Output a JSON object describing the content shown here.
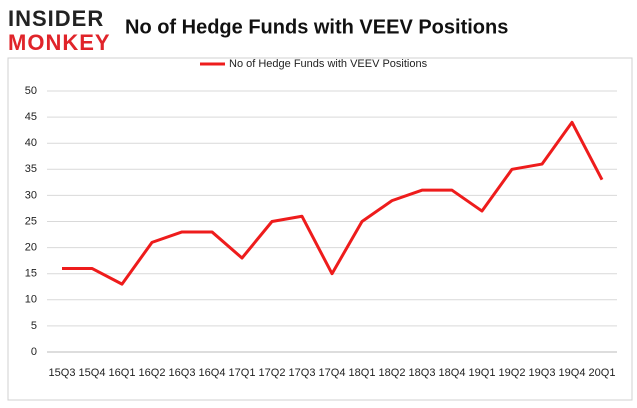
{
  "logo": {
    "line1": "INSIDER",
    "line2": "MONKEY"
  },
  "chart_data": {
    "type": "line",
    "title": "No of Hedge Funds with VEEV Positions",
    "categories": [
      "15Q3",
      "15Q4",
      "16Q1",
      "16Q2",
      "16Q3",
      "16Q4",
      "17Q1",
      "17Q2",
      "17Q3",
      "17Q4",
      "18Q1",
      "18Q2",
      "18Q3",
      "18Q4",
      "19Q1",
      "19Q2",
      "19Q3",
      "19Q4",
      "20Q1"
    ],
    "series": [
      {
        "name": "No of Hedge Funds with VEEV  Positions",
        "color": "#ee1c1c",
        "values": [
          16,
          16,
          13,
          21,
          23,
          23,
          18,
          25,
          26,
          15,
          25,
          29,
          31,
          31,
          27,
          35,
          36,
          44,
          33
        ]
      }
    ],
    "ylim": [
      0,
      50
    ],
    "yticks": [
      0,
      5,
      10,
      15,
      20,
      25,
      30,
      35,
      40,
      45,
      50
    ],
    "grid": true,
    "legend": "top"
  }
}
